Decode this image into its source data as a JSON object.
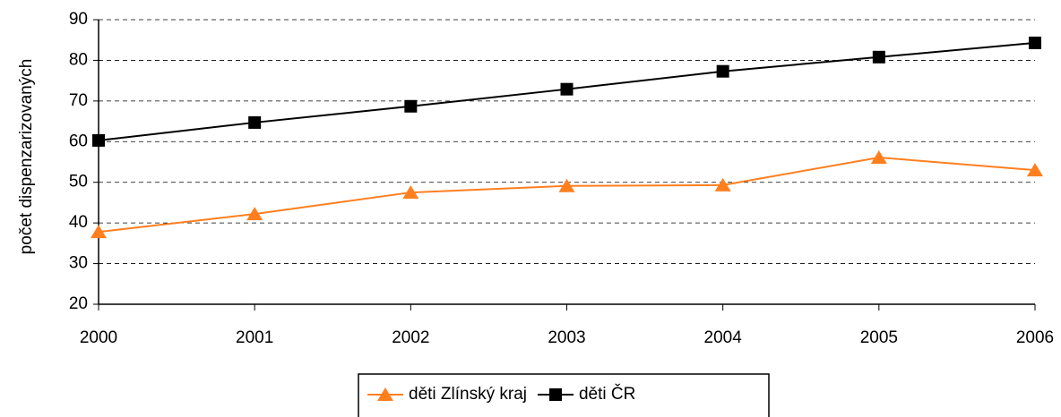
{
  "chart_data": {
    "type": "line",
    "y_label": "počet dispenzarizovaných",
    "x": [
      2000,
      2001,
      2002,
      2003,
      2004,
      2005,
      2006
    ],
    "xlim": [
      2000,
      2006
    ],
    "xticks": [
      2000,
      2001,
      2002,
      2003,
      2004,
      2005,
      2006
    ],
    "ylim": [
      20,
      90
    ],
    "yticks": [
      20,
      30,
      40,
      50,
      60,
      70,
      80,
      90
    ],
    "grid": true,
    "legend": "bottom",
    "series": [
      {
        "name": "děti Zlínský kraj",
        "color": "#ff7f1f",
        "marker": "triangle",
        "values": [
          37.8,
          42.2,
          47.5,
          49.1,
          49.3,
          56.1,
          53.0
        ]
      },
      {
        "name": "děti ČR",
        "color": "#000000",
        "marker": "square",
        "values": [
          60.3,
          64.7,
          68.7,
          72.9,
          77.3,
          80.8,
          84.3
        ]
      }
    ]
  }
}
